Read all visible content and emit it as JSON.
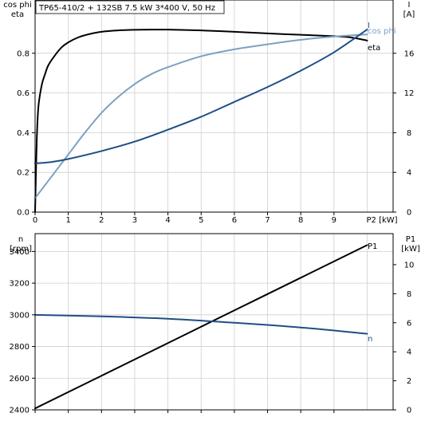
{
  "title": "TP65-410/2 + 132SB   7.5 kW   3*400 V, 50 Hz",
  "chart_data": [
    {
      "type": "line",
      "xlabel": "P2 [kW]",
      "xlim": [
        0,
        10.5
      ],
      "xticks": [
        0,
        1,
        2,
        3,
        4,
        5,
        6,
        7,
        8,
        9
      ],
      "left_axis": {
        "label_lines": [
          "cos phi",
          "eta"
        ],
        "ylim": [
          0,
          1.0
        ],
        "ticks": [
          0.0,
          0.2,
          0.4,
          0.6,
          0.8
        ],
        "tick_labels": [
          "0.0",
          "0.2",
          "0.4",
          "0.6",
          "0.8"
        ]
      },
      "right_axis": {
        "label_lines": [
          "I",
          "[A]"
        ],
        "ylim": [
          0,
          20
        ],
        "ticks": [
          0,
          4,
          8,
          12,
          16
        ],
        "tick_labels": [
          "0",
          "4",
          "8",
          "12",
          "16"
        ]
      },
      "grid": true,
      "series": [
        {
          "name": "eta",
          "axis": "left",
          "color": "#000000",
          "x": [
            0,
            0.05,
            0.1,
            0.2,
            0.3,
            0.4,
            0.6,
            0.8,
            1.0,
            1.3,
            1.6,
            2.0,
            2.5,
            3.0,
            3.5,
            4.0,
            5.0,
            6.0,
            7.0,
            8.0,
            9.0,
            9.5,
            10.0
          ],
          "y": [
            0,
            0.36,
            0.53,
            0.64,
            0.695,
            0.74,
            0.79,
            0.83,
            0.855,
            0.88,
            0.895,
            0.908,
            0.915,
            0.918,
            0.919,
            0.919,
            0.915,
            0.908,
            0.9,
            0.893,
            0.886,
            0.88,
            0.864
          ]
        },
        {
          "name": "cos phi",
          "axis": "left",
          "color": "#7ba1c2",
          "x": [
            0,
            0.5,
            1.0,
            1.5,
            2.0,
            2.5,
            3.0,
            3.5,
            4.0,
            5.0,
            6.0,
            7.0,
            8.0,
            9.0,
            10.0
          ],
          "y": [
            0.07,
            0.18,
            0.29,
            0.4,
            0.5,
            0.58,
            0.645,
            0.695,
            0.73,
            0.785,
            0.82,
            0.845,
            0.868,
            0.884,
            0.895
          ]
        },
        {
          "name": "I",
          "axis": "right",
          "color": "#1f4e86",
          "x": [
            0,
            0.5,
            1.0,
            2.0,
            3.0,
            4.0,
            5.0,
            6.0,
            7.0,
            8.0,
            9.0,
            10.0
          ],
          "y": [
            4.9,
            5.05,
            5.35,
            6.15,
            7.1,
            8.3,
            9.6,
            11.1,
            12.6,
            14.25,
            16.1,
            18.4
          ]
        }
      ],
      "series_labels": [
        "cos phi",
        "eta",
        "I"
      ]
    },
    {
      "type": "line",
      "xlim": [
        0,
        10.5
      ],
      "xticks": [
        0,
        1,
        2,
        3,
        4,
        5,
        6,
        7,
        8,
        9
      ],
      "left_axis": {
        "label_lines": [
          "n",
          "[rpm]"
        ],
        "ylim": [
          2400,
          3500
        ],
        "ticks": [
          2400,
          2600,
          2800,
          3000,
          3200,
          3400
        ],
        "tick_labels": [
          "2400",
          "2600",
          "2800",
          "3000",
          "3200",
          "3400"
        ]
      },
      "right_axis": {
        "label_lines": [
          "P1",
          "[kW]"
        ],
        "ylim": [
          0,
          12
        ],
        "ticks": [
          0,
          2,
          4,
          6,
          8,
          10
        ],
        "tick_labels": [
          "0",
          "2",
          "4",
          "6",
          "8",
          "10"
        ]
      },
      "grid": true,
      "series": [
        {
          "name": "P1",
          "axis": "right",
          "color": "#000000",
          "x": [
            0,
            2,
            4,
            6,
            8,
            10
          ],
          "y": [
            0.1,
            2.35,
            4.6,
            6.85,
            9.1,
            11.35
          ]
        },
        {
          "name": "n",
          "axis": "left",
          "color": "#1f4e86",
          "x": [
            0,
            2,
            4,
            6,
            8,
            10
          ],
          "y": [
            3000,
            2990,
            2975,
            2950,
            2920,
            2880
          ]
        }
      ],
      "series_labels": [
        "P1",
        "n"
      ]
    }
  ]
}
